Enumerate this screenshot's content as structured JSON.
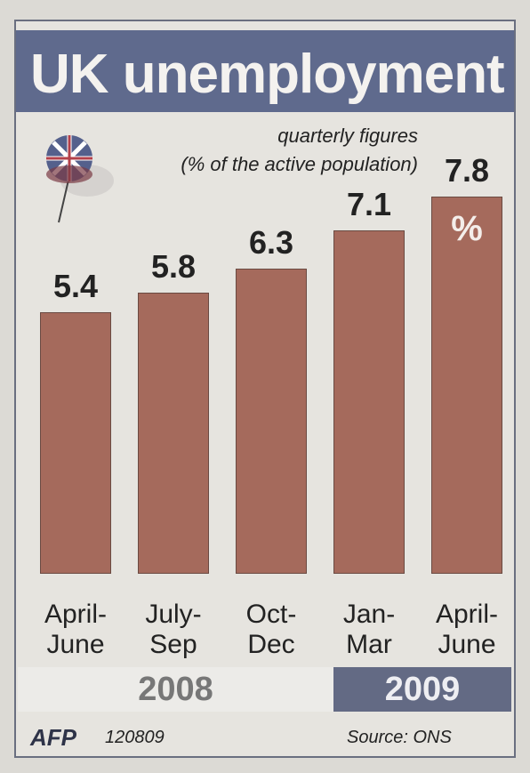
{
  "chart_data": {
    "type": "bar",
    "title": "UK unemployment",
    "subtitle": [
      "quarterly figures",
      "(% of the active population)"
    ],
    "categories": [
      "April-June",
      "July-Sep",
      "Oct-Dec",
      "Jan-Mar",
      "April-June"
    ],
    "values": [
      5.4,
      5.8,
      6.3,
      7.1,
      7.8
    ],
    "unit": "%",
    "groups": [
      "2008",
      "2009"
    ],
    "color": "#a56a5c"
  },
  "credits": {
    "agency": "AFP",
    "code": "120809",
    "source": "Source: ONS"
  }
}
